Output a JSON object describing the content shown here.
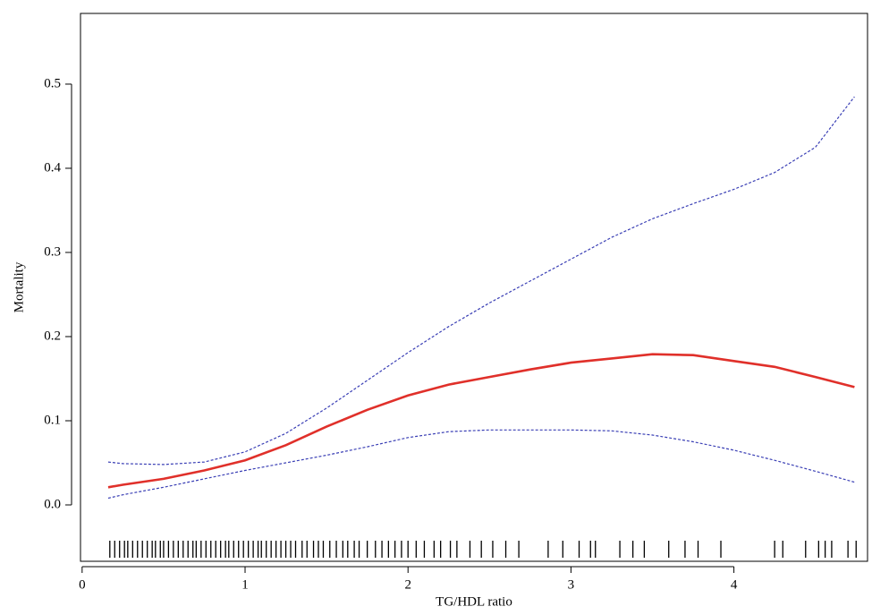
{
  "chart_data": {
    "type": "line",
    "x_label": "TG/HDL ratio",
    "y_label": "Mortality",
    "x": [
      0.16,
      0.25,
      0.5,
      0.75,
      1,
      1.25,
      1.5,
      1.75,
      2,
      2.25,
      2.5,
      2.75,
      3,
      3.25,
      3.5,
      3.75,
      4,
      4.25,
      4.5,
      4.74
    ],
    "series": [
      {
        "color": "#e0302a",
        "dashed": false,
        "values": [
          0.021,
          0.024,
          0.031,
          0.041,
          0.053,
          0.071,
          0.093,
          0.113,
          0.13,
          0.143,
          0.152,
          0.161,
          0.169,
          0.174,
          0.179,
          0.178,
          0.171,
          0.164,
          0.152,
          0.14
        ]
      },
      {
        "color": "#3a3fb5",
        "dashed": true,
        "values": [
          0.051,
          0.049,
          0.048,
          0.051,
          0.063,
          0.085,
          0.115,
          0.148,
          0.181,
          0.212,
          0.24,
          0.266,
          0.292,
          0.318,
          0.34,
          0.358,
          0.375,
          0.395,
          0.425,
          0.485
        ]
      },
      {
        "color": "#3a3fb5",
        "dashed": true,
        "values": [
          0.008,
          0.012,
          0.021,
          0.031,
          0.041,
          0.05,
          0.059,
          0.069,
          0.08,
          0.087,
          0.089,
          0.089,
          0.089,
          0.088,
          0.083,
          0.075,
          0.065,
          0.053,
          0.04,
          0.027
        ]
      }
    ],
    "rug": [
      0.17,
      0.2,
      0.23,
      0.26,
      0.28,
      0.31,
      0.34,
      0.37,
      0.4,
      0.43,
      0.45,
      0.48,
      0.5,
      0.53,
      0.56,
      0.59,
      0.62,
      0.65,
      0.68,
      0.7,
      0.73,
      0.76,
      0.79,
      0.82,
      0.85,
      0.88,
      0.9,
      0.93,
      0.96,
      0.99,
      1.02,
      1.05,
      1.08,
      1.1,
      1.13,
      1.16,
      1.19,
      1.22,
      1.25,
      1.28,
      1.31,
      1.35,
      1.38,
      1.42,
      1.45,
      1.48,
      1.52,
      1.56,
      1.6,
      1.63,
      1.67,
      1.7,
      1.75,
      1.8,
      1.84,
      1.88,
      1.92,
      1.96,
      2.0,
      2.05,
      2.1,
      2.16,
      2.2,
      2.26,
      2.3,
      2.38,
      2.45,
      2.52,
      2.6,
      2.68,
      2.86,
      2.95,
      3.05,
      3.12,
      3.15,
      3.3,
      3.38,
      3.45,
      3.6,
      3.7,
      3.78,
      3.92,
      4.25,
      4.3,
      4.44,
      4.52,
      4.56,
      4.6,
      4.7,
      4.75
    ],
    "xlim": [
      -0.01,
      4.82
    ],
    "ylim": [
      -0.067,
      0.584
    ],
    "xticks": [
      0,
      1,
      2,
      3,
      4
    ],
    "yticks": [
      {
        "value": 0,
        "label": "0.0"
      },
      0.1,
      0.2,
      0.3,
      0.4,
      0.5
    ],
    "grid": false
  }
}
